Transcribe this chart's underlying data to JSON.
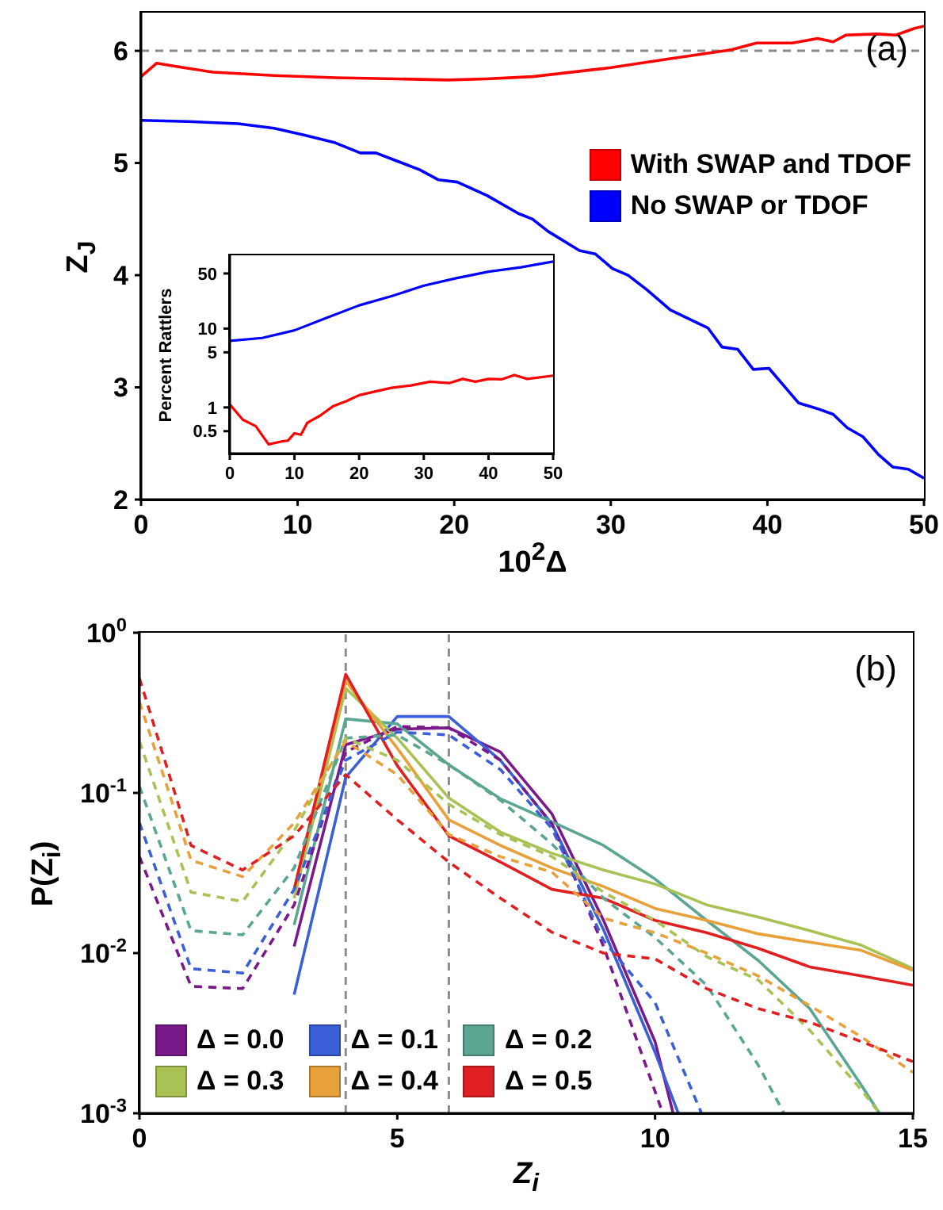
{
  "chart_data": [
    {
      "type": "line",
      "xlabel": "10$^{2}$Δ",
      "ylabel": "Z$_{J}$",
      "xlim": [
        0,
        50
      ],
      "ylim": [
        2,
        6.34
      ],
      "xticks": [
        0,
        10,
        20,
        30,
        40,
        50
      ],
      "yticks": [
        2,
        3,
        4,
        5,
        6
      ],
      "legend": "right",
      "annotations": [
        "(a)"
      ],
      "ref_lines": [
        {
          "axis": "y",
          "value": 6,
          "color": "#8c8c8c",
          "line_style": "dashed"
        }
      ],
      "series": [
        {
          "name": "With SWAP and TDOF",
          "color": "#ff0000",
          "x": [
            0,
            1,
            2.7,
            4.6,
            8.5,
            12.4,
            16.3,
            19.6,
            22,
            25,
            30,
            33.8,
            37.7,
            39.3,
            41.6,
            43.2,
            44.2,
            45,
            47,
            48.2,
            49.4,
            50
          ],
          "values": [
            5.77,
            5.89,
            5.85,
            5.81,
            5.78,
            5.76,
            5.75,
            5.74,
            5.75,
            5.77,
            5.85,
            5.93,
            6.01,
            6.07,
            6.07,
            6.11,
            6.08,
            6.14,
            6.15,
            6.14,
            6.2,
            6.22
          ]
        },
        {
          "name": "No SWAP or TDOF",
          "color": "#0000ff",
          "x": [
            0,
            3,
            6.2,
            8.5,
            10.4,
            12.4,
            14,
            15,
            16.3,
            17.8,
            19,
            20.2,
            22.1,
            24.1,
            25,
            26,
            28,
            29,
            30.1,
            31.1,
            32.3,
            33.8,
            36.2,
            37.1,
            38.1,
            39.1,
            40.1,
            42,
            43.2,
            44.2,
            45.1,
            46.1,
            47.1,
            48,
            49,
            50
          ],
          "values": [
            5.38,
            5.37,
            5.35,
            5.31,
            5.25,
            5.18,
            5.09,
            5.09,
            5.02,
            4.94,
            4.85,
            4.83,
            4.71,
            4.55,
            4.5,
            4.39,
            4.22,
            4.19,
            4.06,
            4.0,
            3.87,
            3.69,
            3.53,
            3.36,
            3.34,
            3.16,
            3.17,
            2.86,
            2.81,
            2.76,
            2.64,
            2.56,
            2.4,
            2.29,
            2.27,
            2.19
          ]
        }
      ]
    },
    {
      "type": "line",
      "ylabel": "Percent Rattlers",
      "xlim": [
        0,
        50
      ],
      "ylim": [
        0.26,
        85
      ],
      "log": true,
      "xticks": [
        0,
        10,
        20,
        30,
        40,
        50
      ],
      "yticks": [
        0.5,
        1,
        5,
        10,
        50
      ],
      "series": [
        {
          "color": "#0000ff",
          "x": [
            0,
            5,
            10,
            15,
            20,
            25,
            30,
            35,
            40,
            45,
            50
          ],
          "values": [
            7.0,
            7.6,
            9.5,
            13.7,
            19.7,
            25.8,
            35,
            43.6,
            52.7,
            59.8,
            71
          ]
        },
        {
          "color": "#ff0000",
          "x": [
            0,
            2,
            4,
            6,
            8,
            9,
            10,
            11,
            12,
            14,
            16,
            18,
            20,
            22,
            25,
            28,
            31,
            34,
            36,
            38,
            40,
            42,
            44,
            46,
            50
          ],
          "values": [
            1.09,
            0.7,
            0.58,
            0.34,
            0.37,
            0.38,
            0.47,
            0.45,
            0.64,
            0.79,
            1.04,
            1.2,
            1.43,
            1.56,
            1.77,
            1.9,
            2.12,
            2.04,
            2.3,
            2.12,
            2.3,
            2.27,
            2.58,
            2.3,
            2.53
          ]
        }
      ]
    },
    {
      "type": "line",
      "xlabel": "Z$_{i}$",
      "ylabel": "P(Z$_{i}$)",
      "xlim": [
        0,
        15
      ],
      "ylim": [
        0.001,
        1
      ],
      "log": true,
      "xticks": [
        0,
        5,
        10,
        15
      ],
      "yticks": [
        {
          "value": 0.001,
          "label": "10$^{-3}$"
        },
        {
          "value": 0.01,
          "label": "10$^{-2}$"
        },
        {
          "value": 0.1,
          "label": "10$^{-1}$"
        },
        {
          "value": 1,
          "label": "10$^{0}$"
        }
      ],
      "legend": "bottom left",
      "annotations": [
        "(b)"
      ],
      "ref_lines": [
        {
          "axis": "x",
          "value": 4,
          "color": "#8c8c8c",
          "line_style": "dashed"
        },
        {
          "axis": "x",
          "value": 6,
          "color": "#8c8c8c",
          "line_style": "dashed"
        }
      ],
      "series": [
        {
          "name": "Δ = 0.0",
          "color": "#7a1a8a",
          "line_style": "solid",
          "x": [
            3,
            4,
            5,
            6,
            7,
            8,
            9,
            10,
            10.35
          ],
          "values": [
            0.011,
            0.2,
            0.25,
            0.255,
            0.18,
            0.074,
            0.016,
            0.0028,
            0.001
          ]
        },
        {
          "name": "Δ = 0.1",
          "color": "#3a5fd6",
          "line_style": "solid",
          "x": [
            3,
            4,
            5,
            6,
            7,
            8,
            9,
            10,
            10.45
          ],
          "values": [
            0.0055,
            0.125,
            0.3,
            0.3,
            0.16,
            0.064,
            0.014,
            0.0024,
            0.001
          ]
        },
        {
          "name": "Δ = 0.2",
          "color": "#5aa692",
          "line_style": "solid",
          "x": [
            3,
            4,
            5,
            6,
            7,
            8,
            9,
            10,
            11,
            12,
            13,
            14,
            14.35
          ],
          "values": [
            0.015,
            0.29,
            0.27,
            0.15,
            0.092,
            0.066,
            0.047,
            0.029,
            0.016,
            0.009,
            0.0045,
            0.0015,
            0.001
          ]
        },
        {
          "name": "Δ = 0.3",
          "color": "#a8c256",
          "line_style": "solid",
          "x": [
            3,
            4,
            5,
            6,
            7,
            8,
            9,
            10,
            11,
            12,
            13,
            14,
            15
          ],
          "values": [
            0.022,
            0.45,
            0.22,
            0.093,
            0.057,
            0.042,
            0.033,
            0.027,
            0.02,
            0.0168,
            0.0138,
            0.0112,
            0.008
          ]
        },
        {
          "name": "Δ = 0.4",
          "color": "#e8a03a",
          "line_style": "solid",
          "x": [
            3,
            4,
            5,
            6,
            7,
            8,
            9,
            10,
            11,
            12,
            13,
            14,
            15
          ],
          "values": [
            0.025,
            0.5,
            0.19,
            0.068,
            0.047,
            0.034,
            0.026,
            0.019,
            0.016,
            0.0132,
            0.0117,
            0.0104,
            0.0078
          ]
        },
        {
          "name": "Δ = 0.5",
          "color": "#e02020",
          "line_style": "solid",
          "x": [
            3,
            4,
            5,
            6,
            7,
            8,
            9,
            10,
            11,
            12,
            13,
            14,
            15
          ],
          "values": [
            0.025,
            0.55,
            0.148,
            0.054,
            0.037,
            0.025,
            0.022,
            0.016,
            0.0134,
            0.0107,
            0.0082,
            0.0072,
            0.0063
          ]
        },
        {
          "color": "#7a1a8a",
          "line_style": "dashed",
          "x": [
            0,
            1,
            2,
            3,
            4,
            5,
            6,
            7,
            8,
            9,
            10.15
          ],
          "values": [
            0.04,
            0.0062,
            0.006,
            0.02,
            0.18,
            0.26,
            0.255,
            0.16,
            0.064,
            0.011,
            0.001
          ]
        },
        {
          "color": "#3a5fd6",
          "line_style": "dashed",
          "x": [
            0,
            1,
            2,
            3,
            4,
            5,
            6,
            7,
            8,
            9,
            10,
            10.9
          ],
          "values": [
            0.065,
            0.008,
            0.0075,
            0.025,
            0.16,
            0.24,
            0.23,
            0.14,
            0.06,
            0.012,
            0.0049,
            0.001
          ]
        },
        {
          "color": "#5aa692",
          "line_style": "dashed",
          "x": [
            0,
            1,
            2,
            3,
            4,
            5,
            6,
            7,
            8,
            9,
            10,
            11,
            12,
            12.5
          ],
          "values": [
            0.11,
            0.0138,
            0.013,
            0.034,
            0.22,
            0.23,
            0.15,
            0.09,
            0.048,
            0.022,
            0.0125,
            0.0063,
            0.002,
            0.001
          ]
        },
        {
          "color": "#a8c256",
          "line_style": "dashed",
          "x": [
            0,
            1,
            2,
            3,
            4,
            5,
            6,
            7,
            8,
            9,
            10,
            11,
            12,
            13,
            14,
            14.35
          ],
          "values": [
            0.21,
            0.024,
            0.021,
            0.058,
            0.22,
            0.16,
            0.085,
            0.055,
            0.04,
            0.024,
            0.016,
            0.0095,
            0.0068,
            0.0033,
            0.0014,
            0.001
          ]
        },
        {
          "color": "#e8a03a",
          "line_style": "dashed",
          "x": [
            0,
            1,
            2,
            3,
            4,
            5,
            6,
            7,
            8,
            9,
            10,
            11,
            12,
            13,
            14,
            15
          ],
          "values": [
            0.37,
            0.038,
            0.03,
            0.065,
            0.21,
            0.13,
            0.055,
            0.04,
            0.032,
            0.0165,
            0.0134,
            0.01,
            0.0072,
            0.0047,
            0.003,
            0.0018
          ]
        },
        {
          "color": "#e02020",
          "line_style": "dashed",
          "x": [
            0,
            1,
            2,
            3,
            4,
            5,
            6,
            7,
            8,
            9,
            10,
            11,
            12,
            13,
            14,
            15
          ],
          "values": [
            0.52,
            0.047,
            0.033,
            0.054,
            0.13,
            0.068,
            0.037,
            0.022,
            0.0135,
            0.01,
            0.0092,
            0.006,
            0.0045,
            0.0037,
            0.0028,
            0.0021
          ]
        }
      ]
    }
  ]
}
